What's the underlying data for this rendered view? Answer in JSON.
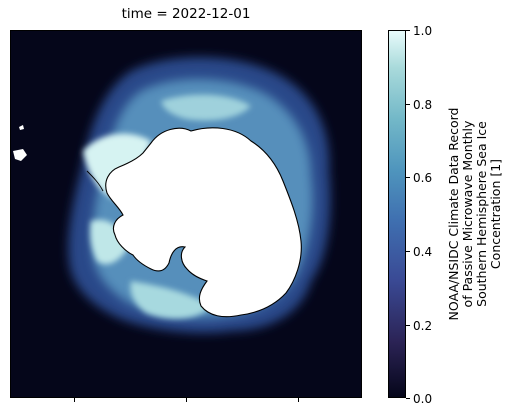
{
  "title": "time = 2022-12-01",
  "colorbar": {
    "ticks": [
      "0.0",
      "0.2",
      "0.4",
      "0.6",
      "0.8",
      "1.0"
    ],
    "tick_values": [
      0.0,
      0.2,
      0.4,
      0.6,
      0.8,
      1.0
    ],
    "label_lines": [
      "NOAA/NSIDC Climate Data Record",
      "of Passive Microwave Monthly",
      "Southern Hemisphere Sea Ice",
      "Concentration [1]"
    ],
    "colors": {
      "low": "#05061a",
      "mid": "#3f6fb0",
      "high": "#e8fbfb"
    }
  },
  "map": {
    "ocean_color": "#05061a",
    "land_color": "#ffffff",
    "coastline_color": "#000000"
  }
}
